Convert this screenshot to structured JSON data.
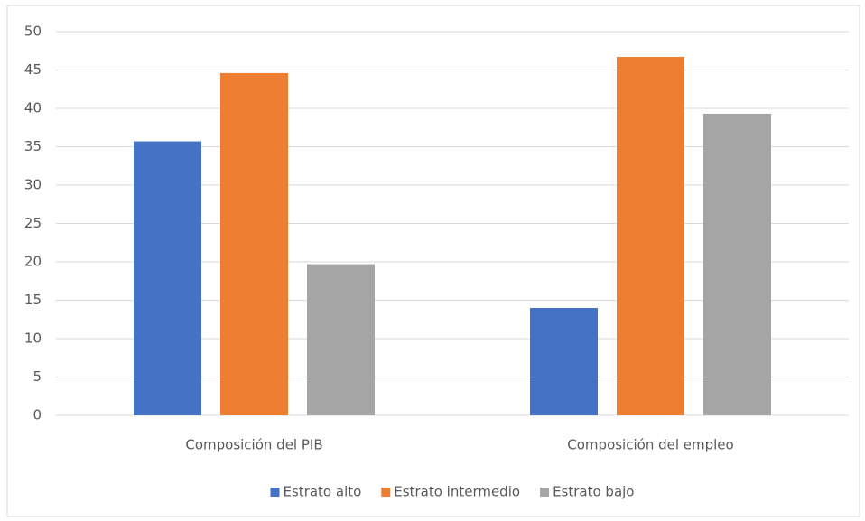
{
  "chart_data": {
    "type": "bar",
    "categories": [
      "Composición del PIB",
      "Composición del empleo"
    ],
    "series": [
      {
        "name": "Estrato alto",
        "color": "#4472c4",
        "values": [
          35.7,
          14.0
        ]
      },
      {
        "name": "Estrato intermedio",
        "color": "#ed7d31",
        "values": [
          44.6,
          46.7
        ]
      },
      {
        "name": "Estrato bajo",
        "color": "#a5a5a5",
        "values": [
          19.7,
          39.3
        ]
      }
    ],
    "ylim": [
      0,
      50
    ],
    "yticks": [
      0,
      5,
      10,
      15,
      20,
      25,
      30,
      35,
      40,
      45,
      50
    ],
    "grid": true,
    "legend": "bottom"
  }
}
